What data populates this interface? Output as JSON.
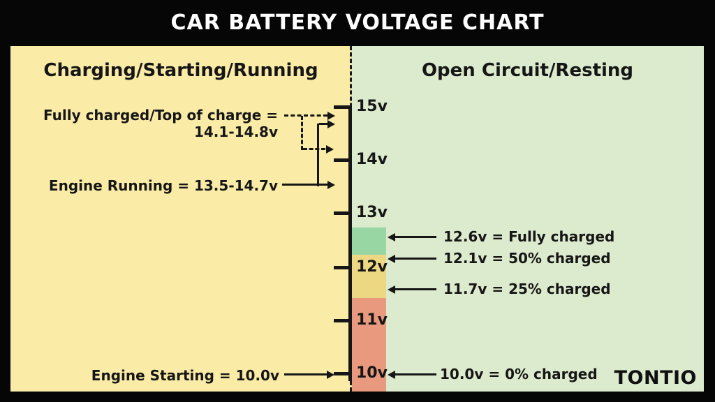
{
  "chart_data": {
    "type": "annotated-scale",
    "title": "CAR BATTERY VOLTAGE CHART",
    "watermark": "TONTIO",
    "axis": {
      "unit": "volts",
      "range": [
        10,
        15
      ],
      "tick_labels": [
        "15v",
        "14v",
        "13v",
        "12v",
        "11v",
        "10v"
      ],
      "tick_values": [
        15,
        14,
        13,
        12,
        11,
        10
      ]
    },
    "left_panel": {
      "header": "Charging/Starting/Running",
      "bg_color": "#faeca7",
      "annotations": [
        {
          "label": "Fully charged/Top of charge =",
          "value": "14.1-14.8v",
          "arrow_style": "dashed",
          "points_to_v": [
            14.8,
            14.1
          ]
        },
        {
          "label": "Engine Running = 13.5-14.7v",
          "arrow_style": "solid",
          "points_to_v": [
            13.5,
            14.7
          ]
        },
        {
          "label": "Engine Starting = 10.0v",
          "arrow_style": "solid",
          "points_to_v": [
            10.0
          ]
        }
      ]
    },
    "right_panel": {
      "header": "Open Circuit/Resting",
      "bg_color": "#dcebcd",
      "annotations": [
        {
          "label": "12.6v = Fully charged",
          "points_to_v": 12.6
        },
        {
          "label": "12.1v = 50% charged",
          "points_to_v": 12.1
        },
        {
          "label": "11.7v = 25% charged",
          "points_to_v": 11.7
        },
        {
          "label": "10.0v = 0% charged",
          "points_to_v": 10.0
        }
      ]
    },
    "bands": [
      {
        "name": "fully-charged-zone",
        "color": "#98d7a3",
        "from_v": 12.1,
        "to_v": 12.6
      },
      {
        "name": "partly-charged-zone",
        "color": "#ecd883",
        "from_v": 11.7,
        "to_v": 12.1
      },
      {
        "name": "discharged-zone",
        "color": "#e8997e",
        "from_v": 10.0,
        "to_v": 11.7
      }
    ],
    "colors": {
      "background": "#060606",
      "title_text": "#ffffff",
      "ink": "#161616"
    },
    "layout": {
      "legend": "none",
      "grid": "off",
      "orientation": "vertical-axis-center"
    }
  }
}
